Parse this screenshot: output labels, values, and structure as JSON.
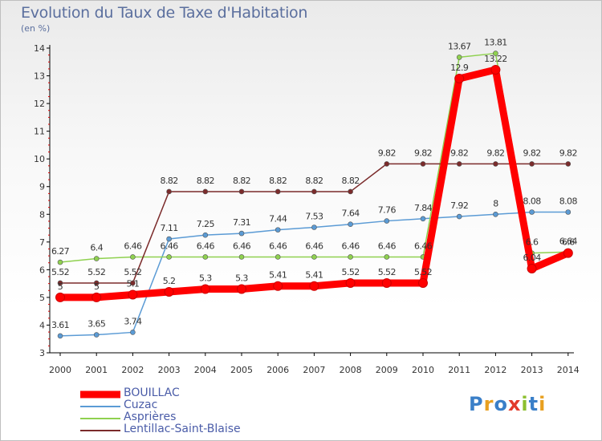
{
  "header": {
    "title": "Evolution du Taux de Taxe d'Habitation",
    "subtitle": "(en %)"
  },
  "logo": {
    "text": "Proxiti",
    "colors": [
      "#3a7fc8",
      "#e8a020",
      "#3a7fc8",
      "#e23a2a",
      "#8cbf2f",
      "#3a7fc8",
      "#e8a020"
    ]
  },
  "chart_data": {
    "type": "line",
    "title": "Evolution du Taux de Taxe d'Habitation",
    "subtitle": "(en %)",
    "xlabel": "",
    "ylabel": "",
    "x": [
      "2000",
      "2001",
      "2002",
      "2003",
      "2004",
      "2005",
      "2006",
      "2007",
      "2008",
      "2009",
      "2010",
      "2011",
      "2012",
      "2013",
      "2014"
    ],
    "ylim": [
      3,
      14
    ],
    "yticks": [
      "3",
      "4",
      "5",
      "6",
      "7",
      "8",
      "9",
      "10",
      "11",
      "12",
      "13",
      "14"
    ],
    "grid": false,
    "legend_position": "bottom-left",
    "series": [
      {
        "name": "BOUILLAC",
        "color": "#ff0000",
        "values": [
          5,
          5,
          5.1,
          5.2,
          5.3,
          5.3,
          5.41,
          5.41,
          5.52,
          5.52,
          5.52,
          12.9,
          13.22,
          6.04,
          6.6
        ],
        "labels": [
          "5",
          "5",
          "5.1",
          "5.2",
          "5.3",
          "5.3",
          "5.41",
          "5.41",
          "5.52",
          "5.52",
          "5.52",
          "12.9",
          "13.22",
          "6.04",
          "6.6"
        ]
      },
      {
        "name": "Cuzac",
        "color": "#5b9bd5",
        "values": [
          3.61,
          3.65,
          3.74,
          7.11,
          7.25,
          7.31,
          7.44,
          7.53,
          7.64,
          7.76,
          7.84,
          7.92,
          8,
          8.08,
          8.08
        ],
        "labels": [
          "3.61",
          "3.65",
          "3.74",
          "7.11",
          "7.25",
          "7.31",
          "7.44",
          "7.53",
          "7.64",
          "7.76",
          "7.84",
          "7.92",
          "8",
          "8.08",
          "8.08"
        ]
      },
      {
        "name": "Asprières",
        "color": "#8fd14f",
        "values": [
          6.27,
          6.4,
          6.46,
          6.46,
          6.46,
          6.46,
          6.46,
          6.46,
          6.46,
          6.46,
          6.46,
          13.67,
          13.81,
          6.6,
          6.64
        ],
        "labels": [
          "6.27",
          "6.4",
          "6.46",
          "6.46",
          "6.46",
          "6.46",
          "6.46",
          "6.46",
          "6.46",
          "6.46",
          "6.46",
          "13.67",
          "13.81",
          "6.6",
          "6.64"
        ]
      },
      {
        "name": "Lentillac-Saint-Blaise",
        "color": "#7b2b2b",
        "values": [
          5.52,
          5.52,
          5.52,
          8.82,
          8.82,
          8.82,
          8.82,
          8.82,
          8.82,
          9.82,
          9.82,
          9.82,
          9.82,
          9.82,
          9.82
        ],
        "labels": [
          "5.52",
          "5.52",
          "5.52",
          "8.82",
          "8.82",
          "8.82",
          "8.82",
          "8.82",
          "8.82",
          "9.82",
          "9.82",
          "9.82",
          "9.82",
          "9.82",
          "9.82"
        ]
      }
    ]
  }
}
